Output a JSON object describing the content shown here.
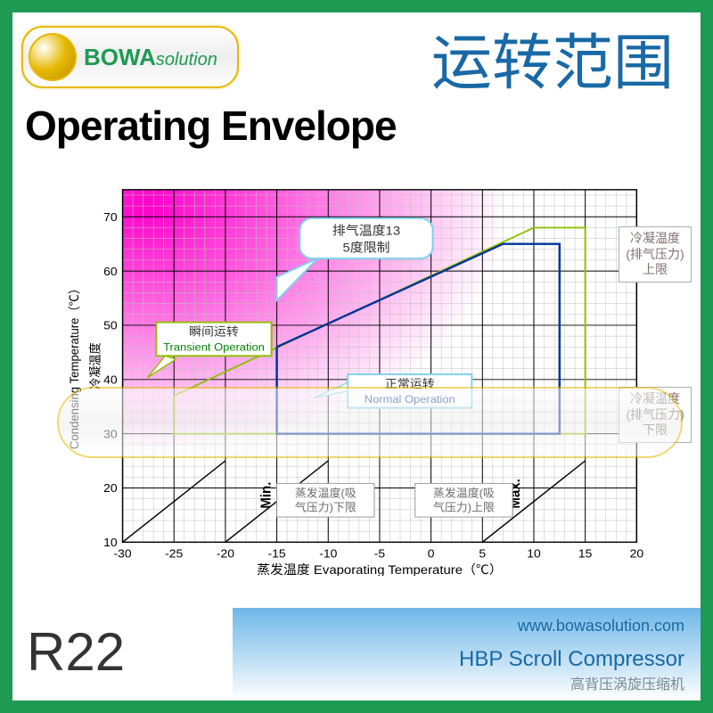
{
  "header": {
    "logo_main": "BOWA",
    "logo_sub": "solution",
    "title_cn": "运转范围",
    "title_en": "Operating Envelope"
  },
  "chart": {
    "type": "envelope_line",
    "background_color": "#ffffff",
    "grid_color": "#000000",
    "minor_grid_color": "#bfbfbf",
    "x_axis": {
      "label_cn": "蒸发温度",
      "label_en": "Evaporating Temperature（℃）",
      "min": -30,
      "max": 20,
      "major_step": 5,
      "minor_step": 1,
      "ticks": [
        -30,
        -25,
        -20,
        -15,
        -10,
        -5,
        0,
        5,
        10,
        15,
        20
      ]
    },
    "y_axis": {
      "label_cn": "冷凝温度",
      "label_en": "Condensing Temperature（℃）",
      "min": 10,
      "max": 75,
      "major_step": 10,
      "minor_step": 2,
      "ticks": [
        10,
        20,
        30,
        40,
        50,
        60,
        70
      ]
    },
    "transient_envelope": {
      "name_cn": "瞬间运转",
      "name_en": "Transient Operation",
      "color": "#8fbf00",
      "line_width": 2,
      "points": [
        [
          -25,
          37
        ],
        [
          -25,
          30
        ],
        [
          15,
          30
        ],
        [
          15,
          68
        ],
        [
          10,
          68
        ],
        [
          -25,
          37
        ]
      ]
    },
    "normal_envelope": {
      "name_cn": "正常运转",
      "name_en": "Normal Operation",
      "color": "#003399",
      "line_width": 2.5,
      "points": [
        [
          -15,
          46
        ],
        [
          -15,
          30
        ],
        [
          12.5,
          30
        ],
        [
          12.5,
          65
        ],
        [
          7,
          65
        ],
        [
          -15,
          46
        ]
      ]
    },
    "diagonal_lines_color": "#000000",
    "gradient": {
      "from": "#ff00cc",
      "to": "#ffffff",
      "direction_deg": 135
    },
    "discharge_limit_label_cn": "排气温度135度限制",
    "cond_upper_label": "冷凝温度(排气压力)上限",
    "cond_lower_label": "冷凝温度(排气压力)下限",
    "evap_lower_label": "蒸发温度(吸气压力)下限",
    "evap_upper_label": "蒸发温度(吸气压力)上限",
    "min_label": "Min.",
    "max_label": "Max."
  },
  "footer": {
    "refrigerant": "R22",
    "url": "www.bowasolution.com",
    "product_en": "HBP Scroll Compressor",
    "product_cn": "高背压涡旋压缩机"
  },
  "colors": {
    "frame_green": "#1e9a52",
    "gold": "#e6b800",
    "blue_text": "#1869a5",
    "sky_grad": "#6eb7e8"
  }
}
